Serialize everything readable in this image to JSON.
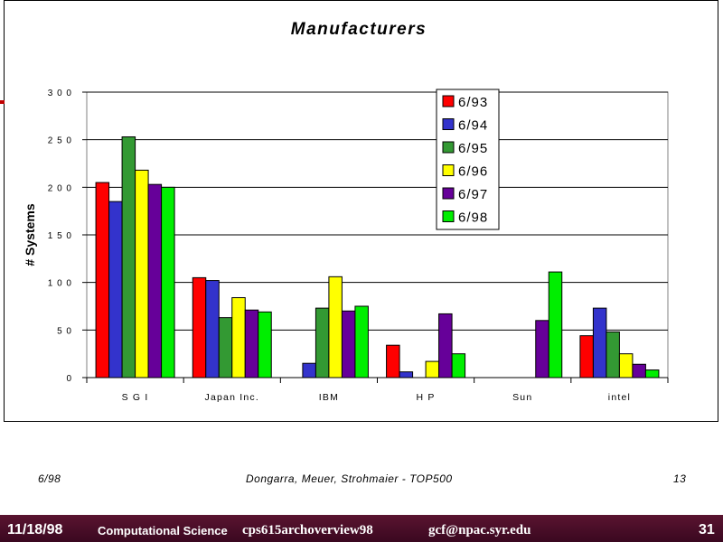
{
  "chart_data": {
    "type": "bar",
    "title": "Manufacturers",
    "ylabel": "# Systems",
    "xlabel": "",
    "categories": [
      "S G I",
      "Japan Inc.",
      "IBM",
      "H P",
      "Sun",
      "intel"
    ],
    "ylim": [
      0,
      300
    ],
    "yticks": [
      0,
      50,
      100,
      150,
      200,
      250,
      300
    ],
    "ytick_labels": [
      "0",
      "5 0",
      "1 0 0",
      "1 5 0",
      "2 0 0",
      "2 5 0",
      "3 0 0"
    ],
    "grid": true,
    "legend_position": "top-center",
    "series": [
      {
        "name": "6/93",
        "color": "#ff0000",
        "values": [
          205,
          105,
          0,
          34,
          0,
          44
        ]
      },
      {
        "name": "6/94",
        "color": "#3333cc",
        "values": [
          185,
          102,
          15,
          6,
          0,
          73
        ]
      },
      {
        "name": "6/95",
        "color": "#339933",
        "values": [
          253,
          63,
          73,
          0,
          0,
          48
        ]
      },
      {
        "name": "6/96",
        "color": "#ffff00",
        "values": [
          218,
          84,
          106,
          17,
          0,
          25
        ]
      },
      {
        "name": "6/97",
        "color": "#660099",
        "values": [
          203,
          71,
          70,
          67,
          60,
          14
        ]
      },
      {
        "name": "6/98",
        "color": "#00ee00",
        "values": [
          200,
          69,
          75,
          25,
          111,
          8
        ]
      }
    ]
  },
  "footer": {
    "left": "6/98",
    "center": "Dongarra, Meuer, Strohmaier - TOP500",
    "right": "13"
  },
  "bottom_bar": {
    "date": "11/18/98",
    "course": "Computational Science",
    "file": "cps615archoverview98",
    "email": "gcf@npac.syr.edu",
    "page": "31"
  },
  "colors": {
    "bottom_bar": "#4a0f28",
    "accent": "#c00000"
  }
}
